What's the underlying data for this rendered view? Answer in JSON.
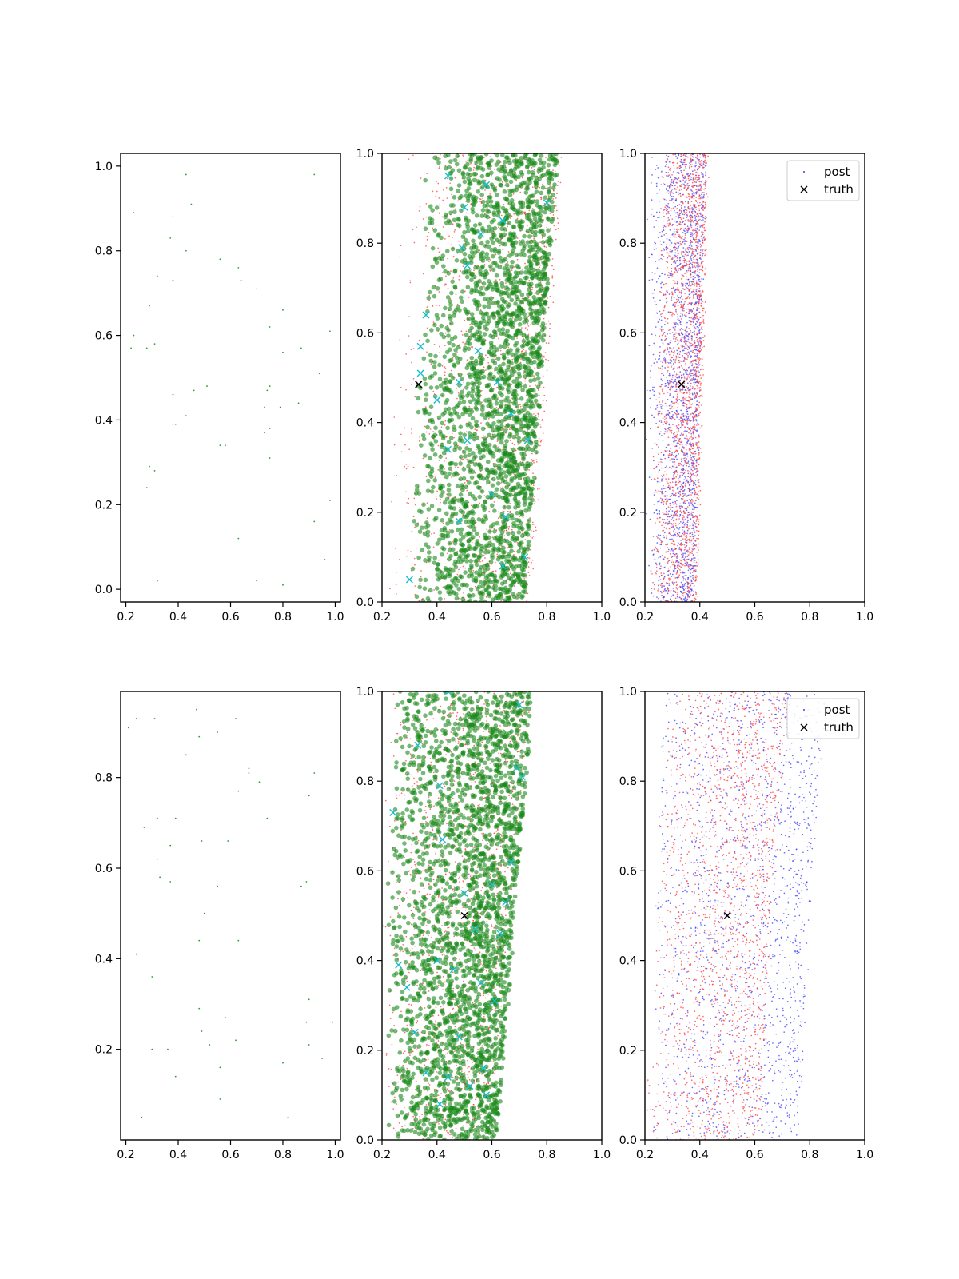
{
  "chart_data": [
    {
      "id": "top-left",
      "type": "scatter",
      "xlim": [
        0.18,
        1.02
      ],
      "ylim": [
        -0.03,
        1.03
      ],
      "xticks": [
        "0.2",
        "0.4",
        "0.6",
        "0.8",
        "1.0"
      ],
      "yticks": [
        "0.0",
        "0.2",
        "0.4",
        "0.6",
        "0.8",
        "1.0"
      ],
      "grid": false,
      "series": [
        {
          "style": "sparse",
          "color": "#2ca02c",
          "points": [
            [
              0.23,
              0.89
            ],
            [
              0.37,
              0.83
            ],
            [
              0.38,
              0.88
            ],
            [
              0.43,
              0.98
            ],
            [
              0.45,
              0.91
            ],
            [
              0.43,
              0.8
            ],
            [
              0.56,
              0.78
            ],
            [
              0.92,
              0.98
            ],
            [
              0.63,
              0.76
            ],
            [
              0.64,
              0.73
            ],
            [
              0.7,
              0.71
            ],
            [
              0.32,
              0.74
            ],
            [
              0.38,
              0.73
            ],
            [
              0.29,
              0.67
            ],
            [
              0.8,
              0.66
            ],
            [
              0.22,
              0.57
            ],
            [
              0.23,
              0.6
            ],
            [
              0.28,
              0.57
            ],
            [
              0.31,
              0.58
            ],
            [
              0.75,
              0.62
            ],
            [
              0.8,
              0.56
            ],
            [
              0.87,
              0.57
            ],
            [
              0.98,
              0.61
            ],
            [
              0.94,
              0.51
            ],
            [
              0.38,
              0.46
            ],
            [
              0.46,
              0.47
            ],
            [
              0.51,
              0.48
            ],
            [
              0.74,
              0.47
            ],
            [
              0.75,
              0.48
            ],
            [
              0.73,
              0.43
            ],
            [
              0.79,
              0.43
            ],
            [
              0.86,
              0.44
            ],
            [
              0.38,
              0.39
            ],
            [
              0.39,
              0.39
            ],
            [
              0.43,
              0.41
            ],
            [
              0.73,
              0.37
            ],
            [
              0.75,
              0.38
            ],
            [
              0.56,
              0.34
            ],
            [
              0.58,
              0.34
            ],
            [
              0.75,
              0.31
            ],
            [
              0.29,
              0.29
            ],
            [
              0.31,
              0.28
            ],
            [
              0.28,
              0.24
            ],
            [
              0.98,
              0.21
            ],
            [
              0.92,
              0.16
            ],
            [
              0.63,
              0.12
            ],
            [
              0.96,
              0.07
            ],
            [
              0.32,
              0.02
            ],
            [
              0.7,
              0.02
            ],
            [
              0.8,
              0.01
            ]
          ]
        }
      ]
    },
    {
      "id": "top-middle",
      "type": "scatter",
      "xlim": [
        0.2,
        1.0
      ],
      "ylim": [
        0.0,
        1.0
      ],
      "xticks": [
        "0.2",
        "0.4",
        "0.6",
        "0.8",
        "1.0"
      ],
      "yticks": [
        "0.0",
        "0.2",
        "0.4",
        "0.6",
        "0.8",
        "1.0"
      ],
      "grid": false,
      "series": [
        {
          "style": "dense-red",
          "color": "#ff3b3b",
          "count": 1500,
          "band": [
            [
              0.0,
              0.2,
              0.74
            ],
            [
              0.5,
              0.24,
              0.8
            ],
            [
              1.0,
              0.26,
              0.86
            ]
          ],
          "skew": 0.55
        },
        {
          "style": "dense-green",
          "color": "#1a8a1a",
          "count": 2400,
          "band": [
            [
              0.0,
              0.3,
              0.72
            ],
            [
              0.5,
              0.33,
              0.78
            ],
            [
              1.0,
              0.36,
              0.84
            ]
          ],
          "skew": 0.6
        },
        {
          "style": "cyan-x",
          "color": "#17becf",
          "points": [
            [
              0.3,
              0.05
            ],
            [
              0.34,
              0.51
            ],
            [
              0.34,
              0.57
            ],
            [
              0.36,
              0.64
            ],
            [
              0.4,
              0.45
            ],
            [
              0.44,
              0.95
            ],
            [
              0.44,
              0.34
            ],
            [
              0.48,
              0.49
            ],
            [
              0.48,
              0.18
            ],
            [
              0.49,
              0.79
            ],
            [
              0.5,
              0.88
            ],
            [
              0.51,
              0.36
            ],
            [
              0.51,
              0.75
            ],
            [
              0.55,
              0.56
            ],
            [
              0.56,
              0.82
            ],
            [
              0.58,
              0.93
            ],
            [
              0.6,
              0.24
            ],
            [
              0.62,
              0.49
            ],
            [
              0.64,
              0.85
            ],
            [
              0.64,
              0.08
            ],
            [
              0.65,
              0.19
            ],
            [
              0.67,
              0.42
            ],
            [
              0.72,
              0.1
            ],
            [
              0.73,
              0.36
            ],
            [
              0.8,
              0.89
            ]
          ]
        },
        {
          "style": "truth-x",
          "color": "#000000",
          "points": [
            [
              0.333,
              0.485
            ]
          ]
        }
      ]
    },
    {
      "id": "top-right",
      "type": "scatter",
      "xlim": [
        0.2,
        1.0
      ],
      "ylim": [
        0.0,
        1.0
      ],
      "xticks": [
        "0.2",
        "0.4",
        "0.6",
        "0.8",
        "1.0"
      ],
      "yticks": [
        "0.0",
        "0.2",
        "0.4",
        "0.6",
        "0.8",
        "1.0"
      ],
      "grid": false,
      "legend": {
        "position": "top-right",
        "entries": [
          "post",
          "truth"
        ]
      },
      "series": [
        {
          "name": "post",
          "style": "dense-blue",
          "color": "#3b3bff",
          "count": 1900,
          "band": [
            [
              0.0,
              0.2,
              0.38
            ],
            [
              0.5,
              0.2,
              0.4
            ],
            [
              1.0,
              0.2,
              0.42
            ]
          ],
          "skew": 0.5
        },
        {
          "style": "dense-red",
          "color": "#ff3b3b",
          "count": 1900,
          "band": [
            [
              0.0,
              0.22,
              0.39
            ],
            [
              0.5,
              0.24,
              0.41
            ],
            [
              1.0,
              0.26,
              0.43
            ]
          ],
          "skew": 0.62
        },
        {
          "name": "truth",
          "style": "truth-x",
          "color": "#000000",
          "points": [
            [
              0.333,
              0.485
            ]
          ]
        }
      ]
    },
    {
      "id": "bottom-left",
      "type": "scatter",
      "xlim": [
        0.18,
        1.02
      ],
      "ylim": [
        0.0,
        0.99
      ],
      "xticks": [
        "0.2",
        "0.4",
        "0.6",
        "0.8",
        "1.0"
      ],
      "yticks": [
        "0.2",
        "0.4",
        "0.6",
        "0.8"
      ],
      "yticks_values": [
        0.2,
        0.4,
        0.6,
        0.8
      ],
      "grid": false,
      "series": [
        {
          "style": "sparse",
          "color": "#2ca02c",
          "points": [
            [
              0.21,
              0.91
            ],
            [
              0.24,
              0.93
            ],
            [
              0.31,
              0.93
            ],
            [
              0.47,
              0.95
            ],
            [
              0.55,
              0.9
            ],
            [
              0.62,
              0.93
            ],
            [
              0.48,
              0.89
            ],
            [
              0.43,
              0.85
            ],
            [
              0.67,
              0.82
            ],
            [
              0.71,
              0.79
            ],
            [
              0.67,
              0.81
            ],
            [
              0.92,
              0.81
            ],
            [
              0.63,
              0.77
            ],
            [
              0.9,
              0.76
            ],
            [
              0.27,
              0.69
            ],
            [
              0.32,
              0.71
            ],
            [
              0.39,
              0.71
            ],
            [
              0.37,
              0.65
            ],
            [
              0.49,
              0.66
            ],
            [
              0.59,
              0.66
            ],
            [
              0.74,
              0.71
            ],
            [
              0.32,
              0.62
            ],
            [
              0.33,
              0.58
            ],
            [
              0.37,
              0.57
            ],
            [
              0.55,
              0.56
            ],
            [
              0.87,
              0.56
            ],
            [
              0.89,
              0.57
            ],
            [
              0.5,
              0.5
            ],
            [
              0.48,
              0.44
            ],
            [
              0.63,
              0.44
            ],
            [
              0.24,
              0.41
            ],
            [
              0.3,
              0.36
            ],
            [
              0.48,
              0.29
            ],
            [
              0.58,
              0.27
            ],
            [
              0.9,
              0.31
            ],
            [
              0.89,
              0.26
            ],
            [
              0.49,
              0.24
            ],
            [
              0.52,
              0.21
            ],
            [
              0.62,
              0.22
            ],
            [
              0.9,
              0.21
            ],
            [
              0.99,
              0.26
            ],
            [
              0.3,
              0.2
            ],
            [
              0.36,
              0.2
            ],
            [
              0.39,
              0.14
            ],
            [
              0.56,
              0.16
            ],
            [
              0.8,
              0.17
            ],
            [
              0.95,
              0.18
            ],
            [
              0.56,
              0.09
            ],
            [
              0.26,
              0.05
            ],
            [
              0.82,
              0.05
            ]
          ]
        }
      ]
    },
    {
      "id": "bottom-middle",
      "type": "scatter",
      "xlim": [
        0.2,
        1.0
      ],
      "ylim": [
        0.0,
        1.0
      ],
      "xticks": [
        "0.2",
        "0.4",
        "0.6",
        "0.8",
        "1.0"
      ],
      "yticks": [
        "0.0",
        "0.2",
        "0.4",
        "0.6",
        "0.8",
        "1.0"
      ],
      "grid": false,
      "series": [
        {
          "style": "dense-red",
          "color": "#ff3b3b",
          "count": 1500,
          "band": [
            [
              0.0,
              0.2,
              0.6
            ],
            [
              0.5,
              0.2,
              0.66
            ],
            [
              1.0,
              0.2,
              0.74
            ]
          ],
          "skew": 0.6
        },
        {
          "style": "dense-green",
          "color": "#1a8a1a",
          "count": 2600,
          "band": [
            [
              0.0,
              0.22,
              0.62
            ],
            [
              0.5,
              0.22,
              0.68
            ],
            [
              1.0,
              0.24,
              0.75
            ]
          ],
          "skew": 0.65
        },
        {
          "style": "cyan-x",
          "color": "#17becf",
          "points": [
            [
              0.24,
              0.73
            ],
            [
              0.26,
              0.39
            ],
            [
              0.29,
              0.34
            ],
            [
              0.32,
              0.24
            ],
            [
              0.33,
              0.88
            ],
            [
              0.36,
              0.15
            ],
            [
              0.4,
              0.4
            ],
            [
              0.41,
              0.79
            ],
            [
              0.41,
              0.08
            ],
            [
              0.42,
              0.67
            ],
            [
              0.44,
              1.0
            ],
            [
              0.44,
              0.14
            ],
            [
              0.46,
              0.38
            ],
            [
              0.48,
              0.23
            ],
            [
              0.5,
              0.55
            ],
            [
              0.52,
              0.12
            ],
            [
              0.54,
              0.47
            ],
            [
              0.56,
              0.35
            ],
            [
              0.57,
              0.16
            ],
            [
              0.58,
              0.1
            ],
            [
              0.6,
              0.57
            ],
            [
              0.61,
              0.31
            ],
            [
              0.63,
              0.46
            ],
            [
              0.65,
              0.53
            ],
            [
              0.67,
              0.62
            ],
            [
              0.69,
              0.83
            ],
            [
              0.7,
              0.97
            ],
            [
              0.71,
              0.81
            ]
          ]
        },
        {
          "style": "truth-x",
          "color": "#000000",
          "points": [
            [
              0.5,
              0.5
            ]
          ]
        }
      ]
    },
    {
      "id": "bottom-right",
      "type": "scatter",
      "xlim": [
        0.2,
        1.0
      ],
      "ylim": [
        0.0,
        1.0
      ],
      "xticks": [
        "0.2",
        "0.4",
        "0.6",
        "0.8",
        "1.0"
      ],
      "yticks": [
        "0.0",
        "0.2",
        "0.4",
        "0.6",
        "0.8",
        "1.0"
      ],
      "grid": false,
      "legend": {
        "position": "top-right",
        "entries": [
          "post",
          "truth"
        ]
      },
      "series": [
        {
          "name": "post",
          "style": "dense-blue",
          "color": "#3b3bff",
          "count": 1700,
          "band": [
            [
              0.0,
              0.22,
              0.76
            ],
            [
              0.5,
              0.24,
              0.8
            ],
            [
              1.0,
              0.26,
              0.86
            ]
          ],
          "skew": 0.8
        },
        {
          "style": "dense-red",
          "color": "#ff3b3b",
          "count": 1700,
          "band": [
            [
              0.0,
              0.2,
              0.62
            ],
            [
              0.5,
              0.24,
              0.66
            ],
            [
              1.0,
              0.28,
              0.72
            ]
          ],
          "skew": 0.7
        },
        {
          "name": "truth",
          "style": "truth-x",
          "color": "#000000",
          "points": [
            [
              0.5,
              0.5
            ]
          ]
        }
      ]
    }
  ]
}
